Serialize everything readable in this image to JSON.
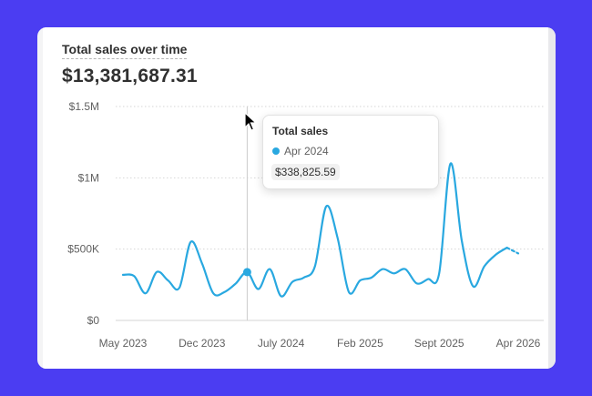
{
  "card": {
    "title": "Total sales over time",
    "total": "$13,381,687.31"
  },
  "colors": {
    "background": "#4B3DF2",
    "line": "#29A8E0",
    "grid": "#d6d6d6",
    "hover_line": "#cccccc"
  },
  "tooltip": {
    "title": "Total sales",
    "date": "Apr 2024",
    "value": "$338,825.59"
  },
  "chart_data": {
    "type": "line",
    "title": "Total sales over time",
    "y_tick_labels": [
      "$0",
      "$500K",
      "$1M",
      "$1.5M"
    ],
    "y_ticks": [
      0,
      500000,
      1000000,
      1500000
    ],
    "ylim": [
      0,
      1500000
    ],
    "x_tick_labels": [
      "May 2023",
      "Dec 2023",
      "July 2024",
      "Feb 2025",
      "Sept 2025",
      "Apr 2026"
    ],
    "x_tick_dates": [
      "2023-05",
      "2023-12",
      "2024-07",
      "2025-02",
      "2025-09",
      "2026-04"
    ],
    "grid": true,
    "hover_date": "2024-04",
    "points": [
      {
        "date": "2023-05",
        "value": 320000
      },
      {
        "date": "2023-06",
        "value": 310000
      },
      {
        "date": "2023-07",
        "value": 190000
      },
      {
        "date": "2023-08",
        "value": 340000
      },
      {
        "date": "2023-09",
        "value": 280000
      },
      {
        "date": "2023-10",
        "value": 230000
      },
      {
        "date": "2023-11",
        "value": 550000
      },
      {
        "date": "2023-12",
        "value": 400000
      },
      {
        "date": "2024-01",
        "value": 190000
      },
      {
        "date": "2024-02",
        "value": 200000
      },
      {
        "date": "2024-03",
        "value": 260000
      },
      {
        "date": "2024-04",
        "value": 338826
      },
      {
        "date": "2024-05",
        "value": 220000
      },
      {
        "date": "2024-06",
        "value": 360000
      },
      {
        "date": "2024-07",
        "value": 170000
      },
      {
        "date": "2024-08",
        "value": 270000
      },
      {
        "date": "2024-09",
        "value": 300000
      },
      {
        "date": "2024-10",
        "value": 380000
      },
      {
        "date": "2024-11",
        "value": 800000
      },
      {
        "date": "2024-12",
        "value": 580000
      },
      {
        "date": "2025-01",
        "value": 200000
      },
      {
        "date": "2025-02",
        "value": 280000
      },
      {
        "date": "2025-03",
        "value": 300000
      },
      {
        "date": "2025-04",
        "value": 360000
      },
      {
        "date": "2025-05",
        "value": 330000
      },
      {
        "date": "2025-06",
        "value": 360000
      },
      {
        "date": "2025-07",
        "value": 260000
      },
      {
        "date": "2025-08",
        "value": 290000
      },
      {
        "date": "2025-09",
        "value": 330000
      },
      {
        "date": "2025-10",
        "value": 1100000
      },
      {
        "date": "2025-11",
        "value": 560000
      },
      {
        "date": "2025-12",
        "value": 240000
      },
      {
        "date": "2026-01",
        "value": 380000
      },
      {
        "date": "2026-02",
        "value": 460000
      },
      {
        "date": "2026-03",
        "value": 510000
      },
      {
        "date": "2026-04",
        "value": 470000
      }
    ]
  }
}
